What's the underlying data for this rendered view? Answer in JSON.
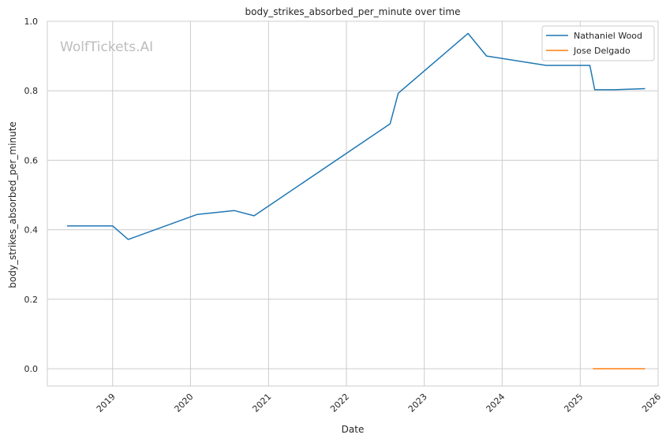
{
  "watermark": "WolfTickets.AI",
  "chart_data": {
    "type": "line",
    "title": "body_strikes_absorbed_per_minute over time",
    "xlabel": "Date",
    "ylabel": "body_strikes_absorbed_per_minute",
    "x_type": "date",
    "xlim": [
      "2018-03-01",
      "2026-01-01"
    ],
    "ylim": [
      -0.05,
      1.0
    ],
    "x_ticks": [
      "2019-01-01",
      "2020-01-01",
      "2021-01-01",
      "2022-01-01",
      "2023-01-01",
      "2024-01-01",
      "2025-01-01",
      "2026-01-01"
    ],
    "x_tick_labels": [
      "2019",
      "2020",
      "2021",
      "2022",
      "2023",
      "2024",
      "2025",
      "2026"
    ],
    "y_ticks": [
      0.0,
      0.2,
      0.4,
      0.6,
      0.8,
      1.0
    ],
    "y_tick_labels": [
      "0.0",
      "0.2",
      "0.4",
      "0.6",
      "0.8",
      "1.0"
    ],
    "grid": true,
    "legend_position": "top-right",
    "series": [
      {
        "name": "Nathaniel Wood",
        "color": "#1f77b4",
        "x": [
          "2018-06-01",
          "2019-01-01",
          "2019-03-15",
          "2020-02-01",
          "2020-07-25",
          "2020-10-25",
          "2022-07-25",
          "2022-09-01",
          "2023-07-25",
          "2023-10-20",
          "2024-07-25",
          "2025-02-15",
          "2025-03-10",
          "2025-06-10",
          "2025-11-01"
        ],
        "values": [
          0.411,
          0.411,
          0.372,
          0.444,
          0.455,
          0.44,
          0.705,
          0.793,
          0.965,
          0.9,
          0.873,
          0.873,
          0.803,
          0.803,
          0.806
        ]
      },
      {
        "name": "Jose Delgado",
        "color": "#ff7f0e",
        "x": [
          "2025-03-01",
          "2025-11-01"
        ],
        "values": [
          0.0,
          0.0
        ]
      }
    ]
  }
}
